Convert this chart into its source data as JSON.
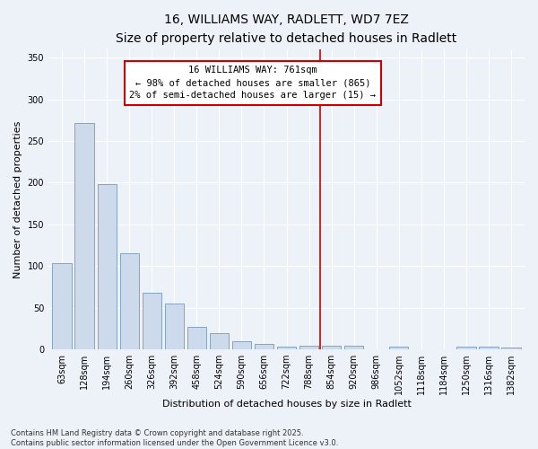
{
  "title_line1": "16, WILLIAMS WAY, RADLETT, WD7 7EZ",
  "title_line2": "Size of property relative to detached houses in Radlett",
  "xlabel": "Distribution of detached houses by size in Radlett",
  "ylabel": "Number of detached properties",
  "bar_color": "#cddaeb",
  "bar_edge_color": "#7799bb",
  "background_color": "#edf1f8",
  "grid_color": "#ffffff",
  "categories": [
    "63sqm",
    "128sqm",
    "194sqm",
    "260sqm",
    "326sqm",
    "392sqm",
    "458sqm",
    "524sqm",
    "590sqm",
    "656sqm",
    "722sqm",
    "788sqm",
    "854sqm",
    "920sqm",
    "986sqm",
    "1052sqm",
    "1118sqm",
    "1184sqm",
    "1250sqm",
    "1316sqm",
    "1382sqm"
  ],
  "values": [
    103,
    272,
    198,
    115,
    68,
    55,
    27,
    19,
    10,
    7,
    3,
    4,
    4,
    4,
    0,
    3,
    0,
    0,
    3,
    3,
    2
  ],
  "vline_position": 11.5,
  "vline_color": "#cc0000",
  "annotation_text": "16 WILLIAMS WAY: 761sqm\n← 98% of detached houses are smaller (865)\n2% of semi-detached houses are larger (15) →",
  "ylim": [
    0,
    360
  ],
  "yticks": [
    0,
    50,
    100,
    150,
    200,
    250,
    300,
    350
  ],
  "footnote": "Contains HM Land Registry data © Crown copyright and database right 2025.\nContains public sector information licensed under the Open Government Licence v3.0.",
  "title_fontsize": 10,
  "subtitle_fontsize": 9,
  "axis_label_fontsize": 8,
  "tick_fontsize": 7,
  "annotation_fontsize": 7.5
}
